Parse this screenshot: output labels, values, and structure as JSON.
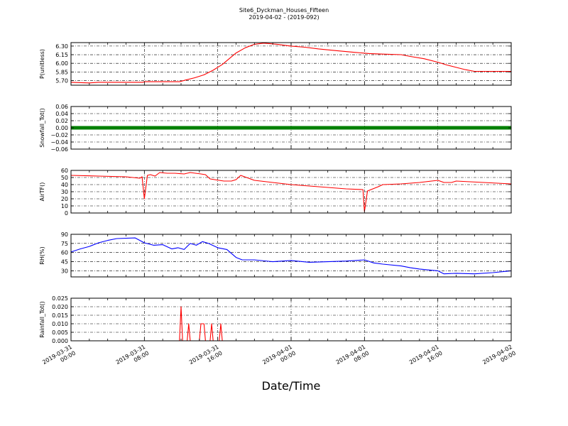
{
  "title": "Site6_Dyckman_Houses_Fifteen",
  "subtitle": "2019-04-02 - (2019-092)",
  "xlabel": "Date/Time",
  "x_tick_labels": [
    [
      "2019-03-31",
      "00:00"
    ],
    [
      "2019-03-31",
      "08:00"
    ],
    [
      "2019-03-31",
      "16:00"
    ],
    [
      "2019-04-01",
      "00:00"
    ],
    [
      "2019-04-01",
      "08:00"
    ],
    [
      "2019-04-01",
      "16:00"
    ],
    [
      "2019-04-02",
      "00:00"
    ]
  ],
  "chart_data": [
    {
      "type": "line",
      "ylabel": "P(unitless)",
      "ylim": [
        5.62,
        6.36
      ],
      "yticks": [
        "6.30",
        "6.15",
        "6.00",
        "5.85",
        "5.70"
      ],
      "ytick_values": [
        6.3,
        6.15,
        6.0,
        5.85,
        5.7
      ],
      "grid": true,
      "color": "#ff0000",
      "x": [
        "2019-03-31 00:00",
        "2019-03-31 02:00",
        "2019-03-31 03:00",
        "2019-03-31 04:00",
        "2019-03-31 06:00",
        "2019-03-31 07:50",
        "2019-03-31 08:00",
        "2019-03-31 11:50",
        "2019-03-31 12:30",
        "2019-03-31 13:30",
        "2019-03-31 14:30",
        "2019-03-31 15:30",
        "2019-03-31 16:30",
        "2019-03-31 17:15",
        "2019-03-31 18:00",
        "2019-03-31 19:00",
        "2019-03-31 20:00",
        "2019-03-31 21:00",
        "2019-03-31 22:30",
        "2019-04-01 00:00",
        "2019-04-01 01:30",
        "2019-04-01 03:00",
        "2019-04-01 05:00",
        "2019-04-01 07:00",
        "2019-04-01 08:30",
        "2019-04-01 10:00",
        "2019-04-01 12:00",
        "2019-04-01 13:00",
        "2019-04-01 14:30",
        "2019-04-01 16:00",
        "2019-04-01 17:00",
        "2019-04-01 18:00",
        "2019-04-01 19:00",
        "2019-04-01 20:00",
        "2019-04-02 00:00"
      ],
      "values": [
        5.67,
        5.66,
        5.67,
        5.67,
        5.67,
        5.67,
        5.68,
        5.68,
        5.71,
        5.75,
        5.8,
        5.88,
        5.98,
        6.08,
        6.18,
        6.27,
        6.33,
        6.35,
        6.33,
        6.3,
        6.28,
        6.25,
        6.22,
        6.19,
        6.17,
        6.16,
        6.15,
        6.12,
        6.08,
        6.02,
        5.97,
        5.93,
        5.89,
        5.86,
        5.86
      ]
    },
    {
      "type": "scatter",
      "ylabel": "Snowfall_Tot()",
      "ylim": [
        -0.06,
        0.06
      ],
      "yticks": [
        "0.06",
        "0.04",
        "0.02",
        "0.00",
        "−0.02",
        "−0.04",
        "−0.06"
      ],
      "ytick_values": [
        0.06,
        0.04,
        0.02,
        0.0,
        -0.02,
        -0.04,
        -0.06
      ],
      "grid": true,
      "color": "#008000",
      "x": [
        "2019-03-31 00:00",
        "2019-04-02 00:00"
      ],
      "values": [
        0.0,
        0.0
      ]
    },
    {
      "type": "line",
      "ylabel": "AirTF()",
      "ylim": [
        0,
        60
      ],
      "yticks": [
        "60",
        "50",
        "40",
        "30",
        "20",
        "10",
        "0"
      ],
      "ytick_values": [
        60,
        50,
        40,
        30,
        20,
        10,
        0
      ],
      "grid": true,
      "color": "#ff0000",
      "x": [
        "2019-03-31 00:00",
        "2019-03-31 03:00",
        "2019-03-31 06:00",
        "2019-03-31 07:30",
        "2019-03-31 07:45",
        "2019-03-31 08:00",
        "2019-03-31 08:20",
        "2019-03-31 08:40",
        "2019-03-31 09:10",
        "2019-03-31 09:40",
        "2019-03-31 10:30",
        "2019-03-31 11:20",
        "2019-03-31 12:20",
        "2019-03-31 13:00",
        "2019-03-31 14:10",
        "2019-03-31 14:40",
        "2019-03-31 15:10",
        "2019-03-31 16:40",
        "2019-03-31 17:30",
        "2019-03-31 18:00",
        "2019-03-31 18:30",
        "2019-03-31 20:00",
        "2019-03-31 22:00",
        "2019-04-01 00:00",
        "2019-04-01 02:00",
        "2019-04-01 04:00",
        "2019-04-01 06:00",
        "2019-04-01 07:50",
        "2019-04-01 08:00",
        "2019-04-01 08:20",
        "2019-04-01 09:30",
        "2019-04-01 10:00",
        "2019-04-01 12:00",
        "2019-04-01 14:00",
        "2019-04-01 16:00",
        "2019-04-01 16:40",
        "2019-04-01 17:30",
        "2019-04-01 18:00",
        "2019-04-02 00:00"
      ],
      "values": [
        53,
        52,
        51,
        49,
        51,
        20,
        53,
        54,
        52,
        57,
        56,
        56,
        55,
        57,
        55,
        54,
        48,
        45,
        45,
        47,
        53,
        46,
        43,
        40,
        38,
        36,
        34,
        33,
        2,
        31,
        37,
        40,
        41,
        43,
        46,
        43,
        43,
        45,
        41
      ]
    },
    {
      "type": "line",
      "ylabel": "RH(%)",
      "ylim": [
        20,
        90
      ],
      "yticks": [
        "90",
        "75",
        "60",
        "45",
        "30"
      ],
      "ytick_values": [
        90,
        75,
        60,
        45,
        30
      ],
      "grid": true,
      "color": "#0000ff",
      "x": [
        "2019-03-31 00:00",
        "2019-03-31 01:00",
        "2019-03-31 02:00",
        "2019-03-31 03:00",
        "2019-03-31 04:00",
        "2019-03-31 05:00",
        "2019-03-31 07:00",
        "2019-03-31 08:00",
        "2019-03-31 09:00",
        "2019-03-31 10:00",
        "2019-03-31 11:00",
        "2019-03-31 11:40",
        "2019-03-31 12:20",
        "2019-03-31 13:00",
        "2019-03-31 13:40",
        "2019-03-31 14:20",
        "2019-03-31 15:00",
        "2019-03-31 16:00",
        "2019-03-31 17:00",
        "2019-03-31 18:00",
        "2019-03-31 18:40",
        "2019-03-31 20:00",
        "2019-03-31 22:00",
        "2019-04-01 00:00",
        "2019-04-01 02:00",
        "2019-04-01 04:00",
        "2019-04-01 06:00",
        "2019-04-01 07:00",
        "2019-04-01 08:00",
        "2019-04-01 09:00",
        "2019-04-01 10:00",
        "2019-04-01 12:00",
        "2019-04-01 13:00",
        "2019-04-01 14:00",
        "2019-04-01 16:00",
        "2019-04-01 16:40",
        "2019-04-01 18:00",
        "2019-04-01 20:00",
        "2019-04-01 22:00",
        "2019-04-02 00:00"
      ],
      "values": [
        61,
        66,
        70,
        76,
        80,
        83,
        84,
        76,
        72,
        73,
        66,
        68,
        65,
        75,
        72,
        78,
        75,
        68,
        65,
        52,
        48,
        48,
        45,
        47,
        44,
        45,
        46,
        47,
        48,
        43,
        41,
        38,
        35,
        33,
        30,
        25,
        26,
        25,
        27,
        30
      ]
    },
    {
      "type": "line",
      "ylabel": "Rainfall_Tot()",
      "ylim": [
        0,
        0.025
      ],
      "yticks": [
        "0.025",
        "0.020",
        "0.015",
        "0.010",
        "0.005",
        "0.000"
      ],
      "ytick_values": [
        0.025,
        0.02,
        0.015,
        0.01,
        0.005,
        0.0
      ],
      "grid": true,
      "color": "#ff0000",
      "x": [
        "2019-03-31 00:00",
        "2019-03-31 11:50",
        "2019-03-31 12:00",
        "2019-03-31 12:10",
        "2019-03-31 12:40",
        "2019-03-31 12:50",
        "2019-03-31 13:00",
        "2019-03-31 14:00",
        "2019-03-31 14:10",
        "2019-03-31 14:30",
        "2019-03-31 14:40",
        "2019-03-31 15:10",
        "2019-03-31 15:20",
        "2019-03-31 15:30",
        "2019-03-31 16:10",
        "2019-03-31 16:20",
        "2019-03-31 16:30",
        "2019-04-02 00:00"
      ],
      "values": [
        0,
        0,
        0.02,
        0,
        0,
        0.01,
        0,
        0,
        0.01,
        0.01,
        0,
        0,
        0.01,
        0,
        0,
        0.01,
        0,
        0
      ]
    }
  ]
}
